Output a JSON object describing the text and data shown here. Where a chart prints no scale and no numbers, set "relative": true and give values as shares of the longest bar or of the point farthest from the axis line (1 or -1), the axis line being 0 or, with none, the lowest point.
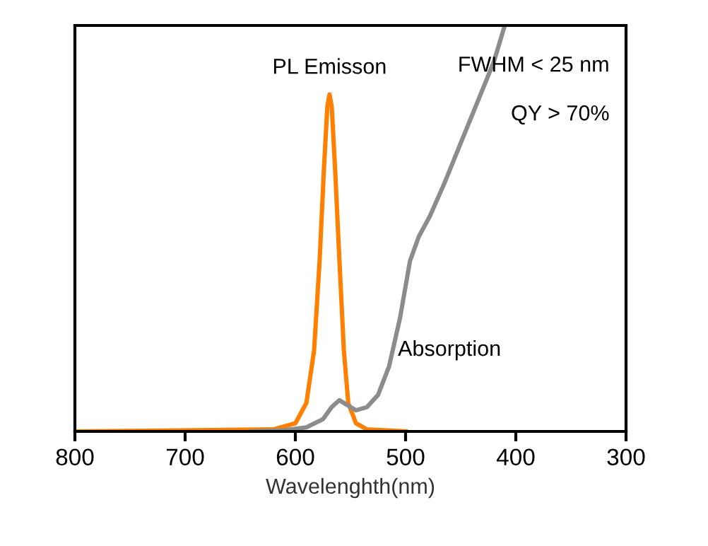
{
  "chart_data": {
    "type": "line",
    "relative": true,
    "xlabel": "Wavelenghth(nm)",
    "xlim": [
      800,
      300
    ],
    "xticks": [
      800,
      700,
      600,
      500,
      400,
      300
    ],
    "series": [
      {
        "name": "PL Emisson",
        "color": "#ff8000",
        "x": [
          800,
          620,
          600,
          590,
          583,
          578,
          574,
          571,
          569,
          567,
          564,
          560,
          556,
          552,
          545,
          535,
          500
        ],
        "values": [
          0,
          0.005,
          0.02,
          0.07,
          0.2,
          0.42,
          0.65,
          0.8,
          0.83,
          0.8,
          0.65,
          0.42,
          0.2,
          0.07,
          0.02,
          0.005,
          0
        ]
      },
      {
        "name": "Absorption",
        "color": "#8c8c8c",
        "x": [
          640,
          610,
          590,
          575,
          567,
          560,
          553,
          545,
          535,
          525,
          515,
          505,
          496,
          488,
          478,
          465,
          450,
          435,
          420,
          410
        ],
        "values": [
          0,
          0.003,
          0.01,
          0.03,
          0.06,
          0.077,
          0.065,
          0.052,
          0.06,
          0.09,
          0.16,
          0.28,
          0.42,
          0.48,
          0.53,
          0.61,
          0.71,
          0.81,
          0.91,
          1.0
        ]
      }
    ],
    "annotations": [
      "FWHM < 25 nm",
      "QY > 70%"
    ],
    "grid": false,
    "legend": false
  }
}
